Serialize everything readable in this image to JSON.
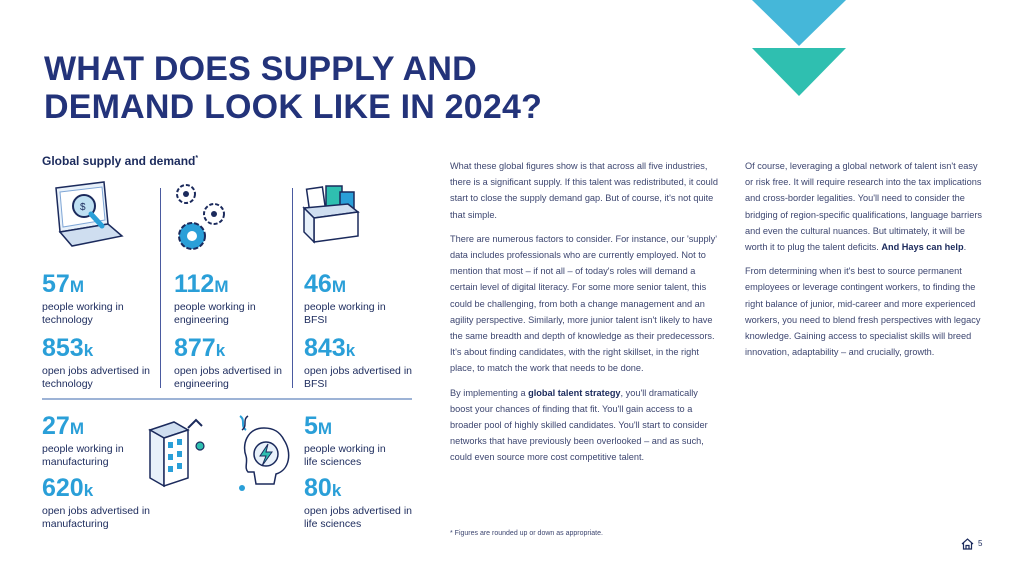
{
  "title": {
    "light1": "WHAT DOES ",
    "bold1": "SUPPLY AND",
    "bold2": "DEMAND",
    "light2": " LOOK LIKE IN 2024?"
  },
  "subhead": {
    "text": "Global supply and demand",
    "marker": "*"
  },
  "stats": {
    "technology": {
      "people_num": "57",
      "people_unit": "M",
      "people_label": "people working in technology",
      "jobs_num": "853",
      "jobs_unit": "k",
      "jobs_label": "open jobs advertised in technology"
    },
    "engineering": {
      "people_num": "112",
      "people_unit": "M",
      "people_label": "people working in engineering",
      "jobs_num": "877",
      "jobs_unit": "k",
      "jobs_label": "open jobs advertised in engineering"
    },
    "bfsi": {
      "people_num": "46",
      "people_unit": "M",
      "people_label": "people working in BFSI",
      "jobs_num": "843",
      "jobs_unit": "k",
      "jobs_label": "open jobs advertised in BFSI"
    },
    "manufacturing": {
      "people_num": "27",
      "people_unit": "M",
      "people_label": "people working in manufacturing",
      "jobs_num": "620",
      "jobs_unit": "k",
      "jobs_label": "open jobs advertised in manufacturing"
    },
    "life_sciences": {
      "people_num": "5",
      "people_unit": "M",
      "people_label": "people working in life sciences",
      "jobs_num": "80",
      "jobs_unit": "k",
      "jobs_label": "open jobs advertised in life sciences"
    }
  },
  "body": {
    "p1": "What these global figures show is that across all five industries, there is a significant supply. If this talent was redistributed, it could start to close the supply demand gap. But of course, it's not quite that simple.",
    "p2": "There are numerous factors to consider. For instance, our 'supply' data includes professionals who are currently employed. Not to mention that most – if not all – of today's roles will demand a certain level of digital literacy. For some more senior talent, this could be challenging, from both a change management and an agility perspective. Similarly, more junior talent isn't likely to have the same breadth and depth of knowledge as their predecessors. It's about finding candidates, with the right skillset, in the right place, to match the work that needs to be done.",
    "p3_a": "By implementing a ",
    "p3_bold": "global talent strategy",
    "p3_b": ", you'll dramatically boost your chances of finding that fit. You'll gain access to a broader pool of highly skilled candidates. You'll start to consider networks that have previously been overlooked – and as such, could even source more cost competitive talent.",
    "p4_a": "Of course, leveraging a global network of talent isn't easy or risk free. It will require research into the tax implications and cross-border legalities. You'll need to consider the bridging of region-specific qualifications, language barriers and even the cultural nuances. But ultimately, it will be worth it to plug the talent deficits. ",
    "p4_bold": "And Hays can help",
    "p4_end": ".",
    "p5": "From determining when it's best to source permanent employees or leverage contingent workers, to finding the right balance of junior, mid-career and more experienced workers, you need to blend fresh perspectives with legacy knowledge. Gaining access to specialist skills will breed innovation, adaptability – and crucially, growth."
  },
  "footnote": "* Figures are rounded up or down as appropriate.",
  "page_number": "5",
  "icons": [
    "laptop-magnifier-icon",
    "gears-icon",
    "documents-box-icon",
    "factory-building-icon",
    "life-sciences-head-icon",
    "home-icon"
  ],
  "colors": {
    "title": "#23337a",
    "accent_blue": "#2a9fd8",
    "triangle_top": "#45b7d9",
    "triangle_bottom": "#2fbfb0",
    "text": "#1b2a5c"
  }
}
